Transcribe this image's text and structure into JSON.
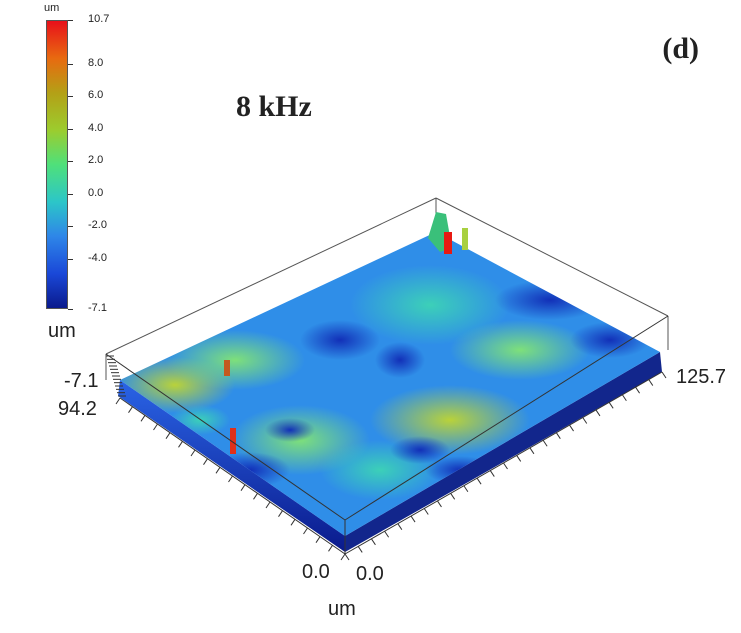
{
  "panel_label": "(d)",
  "title": "8 kHz",
  "colorbar": {
    "unit": "um",
    "ticks": [
      "10.7",
      "8.0",
      "6.0",
      "4.0",
      "2.0",
      "0.0",
      "-2.0",
      "-4.0",
      "-7.1"
    ],
    "tick_values": [
      10.7,
      8.0,
      6.0,
      4.0,
      2.0,
      0.0,
      -2.0,
      -4.0,
      -7.1
    ],
    "colors": [
      "#e8101a",
      "#e86a10",
      "#b4a016",
      "#9ccc2e",
      "#4fe07a",
      "#2cc6c8",
      "#2e86e8",
      "#1a48d8",
      "#0a1a8c"
    ]
  },
  "axes": {
    "z_unit": "um",
    "z_min_label": "-7.1",
    "y_max_label": "94.2",
    "y_min_label": "0.0",
    "x_min_label": "0.0",
    "x_max_label": "125.7",
    "x_unit": "um"
  },
  "chart_data": {
    "type": "heatmap",
    "title": "8 kHz",
    "x_range": [
      0.0,
      125.7
    ],
    "y_range": [
      0.0,
      94.2
    ],
    "z_range": [
      -7.1,
      10.7
    ],
    "units": "um"
  }
}
